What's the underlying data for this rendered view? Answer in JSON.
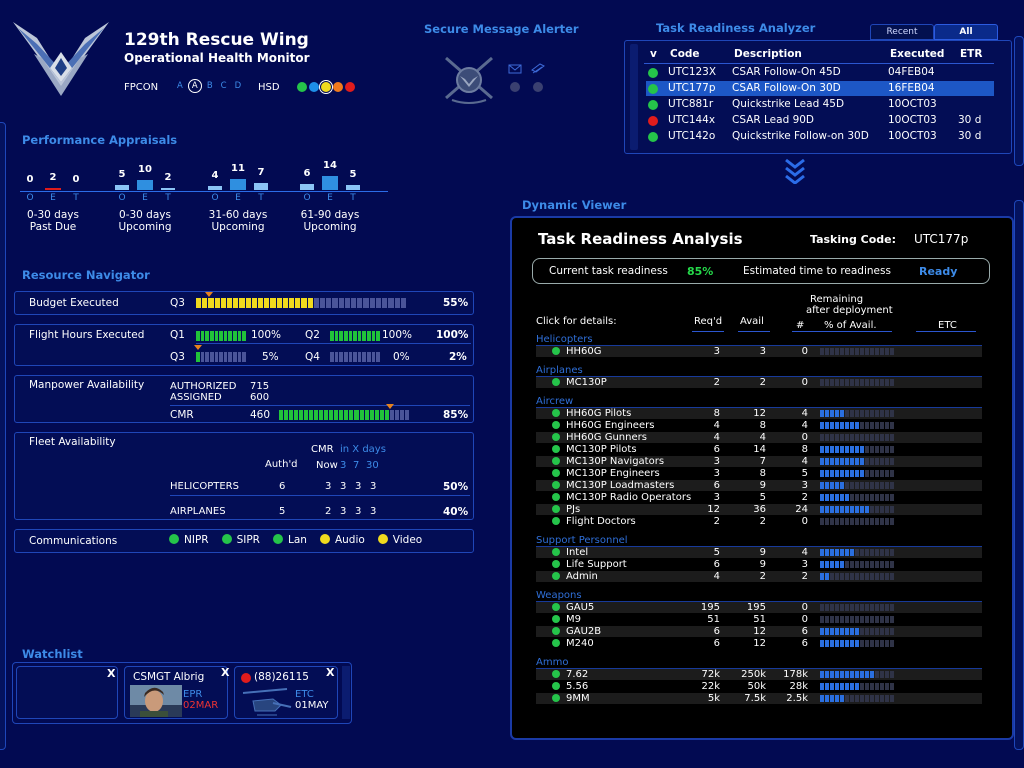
{
  "header": {
    "org_name": "129th Rescue Wing",
    "app_name": "Operational Health Monitor",
    "fpcon_label": "FPCON",
    "fpcon_levels": [
      "A",
      "A",
      "B",
      "C",
      "D"
    ],
    "fpcon_selected": "A",
    "hsd_label": "HSD",
    "hsd_colors": [
      "#25c44a",
      "#1e8fe8",
      "#f0da1e",
      "#f07a1c",
      "#e01c1c"
    ],
    "hsd_selected": 2
  },
  "secure_message": {
    "title": "Secure Message Alerter"
  },
  "task_readiness": {
    "title": "Task Readiness Analyzer",
    "tabs": [
      "Recent",
      "All"
    ],
    "active_tab": "All",
    "columns": [
      "v",
      "Code",
      "Description",
      "Executed",
      "ETR"
    ],
    "rows": [
      {
        "status": "#25c44a",
        "code": "UTC123X",
        "description": "CSAR Follow-On 45D",
        "executed": "04FEB04",
        "etr": ""
      },
      {
        "status": "#25c44a",
        "code": "UTC177p",
        "description": "CSAR Follow-On 30D",
        "executed": "16FEB04",
        "etr": "",
        "selected": true
      },
      {
        "status": "#25c44a",
        "code": "UTC881r",
        "description": "Quickstrike Lead 45D",
        "executed": "10OCT03",
        "etr": ""
      },
      {
        "status": "#e01c1c",
        "code": "UTC144x",
        "description": "CSAR Lead 90D",
        "executed": "10OCT03",
        "etr": "30 d"
      },
      {
        "status": "#25c44a",
        "code": "UTC142o",
        "description": "Quickstrike Follow-on 30D",
        "executed": "10OCT03",
        "etr": "30 d"
      }
    ]
  },
  "performance": {
    "title": "Performance Appraisals",
    "groups": [
      {
        "values": [
          0,
          2,
          0
        ],
        "labels": [
          "O",
          "E",
          "T"
        ],
        "caption1": "0-30 days",
        "caption2": "Past Due"
      },
      {
        "values": [
          5,
          10,
          2
        ],
        "labels": [
          "O",
          "E",
          "T"
        ],
        "caption1": "0-30 days",
        "caption2": "Upcoming"
      },
      {
        "values": [
          4,
          11,
          7
        ],
        "labels": [
          "O",
          "E",
          "T"
        ],
        "caption1": "31-60 days",
        "caption2": "Upcoming"
      },
      {
        "values": [
          6,
          14,
          5
        ],
        "labels": [
          "O",
          "E",
          "T"
        ],
        "caption1": "61-90 days",
        "caption2": "Upcoming"
      }
    ]
  },
  "resource": {
    "title": "Resource Navigator",
    "budget": {
      "label": "Budget Executed",
      "quarter": "Q3",
      "pct": "55%",
      "fill": 0.55
    },
    "flight": {
      "label": "Flight Hours Executed",
      "q1": "Q1",
      "q1_pct": "100%",
      "q2": "Q2",
      "q2_pct": "100%",
      "total1": "100%",
      "q3": "Q3",
      "q3_pct": "5%",
      "q4": "Q4",
      "q4_pct": "0%",
      "total2": "2%"
    },
    "manpower": {
      "label": "Manpower Availability",
      "authorized_label": "AUTHORIZED",
      "authorized": "715",
      "assigned_label": "ASSIGNED",
      "assigned": "600",
      "cmr_label": "CMR",
      "cmr": "460",
      "pct": "85%",
      "fill": 0.85
    },
    "fleet": {
      "label": "Fleet Availability",
      "cmr_label": "CMR",
      "in_x_days": "in X days",
      "authd": "Auth'd",
      "now": "Now",
      "d3": "3",
      "d7": "7",
      "d30": "30",
      "helicopters": {
        "label": "HELICOPTERS",
        "auth": "6",
        "vals": [
          "3",
          "3",
          "3",
          "3"
        ],
        "pct": "50%"
      },
      "airplanes": {
        "label": "AIRPLANES",
        "auth": "5",
        "vals": [
          "2",
          "3",
          "3",
          "3"
        ],
        "pct": "40%"
      }
    },
    "comms": {
      "label": "Communications",
      "items": [
        {
          "name": "NIPR",
          "color": "#25c44a"
        },
        {
          "name": "SIPR",
          "color": "#25c44a"
        },
        {
          "name": "Lan",
          "color": "#25c44a"
        },
        {
          "name": "Audio",
          "color": "#f0da1e"
        },
        {
          "name": "Video",
          "color": "#f0da1e"
        }
      ]
    }
  },
  "watchlist": {
    "title": "Watchlist",
    "close": "X",
    "person": {
      "name": "CSMGT Albrig",
      "field": "EPR",
      "date": "02MAR"
    },
    "aircraft": {
      "name": "(88)26115",
      "field": "ETC",
      "date": "01MAY"
    }
  },
  "dynamic_viewer": {
    "title": "Dynamic Viewer",
    "panel_title": "Task Readiness Analysis",
    "tasking_label": "Tasking Code:",
    "tasking_code": "UTC177p",
    "current_label": "Current task readiness",
    "current_pct": "85%",
    "etr_label": "Estimated time to readiness",
    "etr_value": "Ready",
    "col_click": "Click for details:",
    "col_req": "Req'd",
    "col_avail": "Avail",
    "col_remaining1": "Remaining",
    "col_remaining2": "after deployment",
    "col_hash": "#",
    "col_pct": "% of Avail.",
    "col_etc": "ETC",
    "categories": [
      {
        "name": "Helicopters",
        "rows": [
          {
            "name": "HH60G",
            "req": "3",
            "avail": "3",
            "rem": "0",
            "fill": 0
          }
        ]
      },
      {
        "name": "Airplanes",
        "rows": [
          {
            "name": "MC130P",
            "req": "2",
            "avail": "2",
            "rem": "0",
            "fill": 0
          }
        ]
      },
      {
        "name": "Aircrew",
        "rows": [
          {
            "name": "HH60G Pilots",
            "req": "8",
            "avail": "12",
            "rem": "4",
            "fill": 0.33
          },
          {
            "name": "HH60G Engineers",
            "req": "4",
            "avail": "8",
            "rem": "4",
            "fill": 0.5
          },
          {
            "name": "HH60G Gunners",
            "req": "4",
            "avail": "4",
            "rem": "0",
            "fill": 0
          },
          {
            "name": "MC130P Pilots",
            "req": "6",
            "avail": "14",
            "rem": "8",
            "fill": 0.57
          },
          {
            "name": "MC130P Navigators",
            "req": "3",
            "avail": "7",
            "rem": "4",
            "fill": 0.57
          },
          {
            "name": "MC130P Engineers",
            "req": "3",
            "avail": "8",
            "rem": "5",
            "fill": 0.62
          },
          {
            "name": "MC130P Loadmasters",
            "req": "6",
            "avail": "9",
            "rem": "3",
            "fill": 0.33
          },
          {
            "name": "MC130P Radio Operators",
            "req": "3",
            "avail": "5",
            "rem": "2",
            "fill": 0.4
          },
          {
            "name": "PJs",
            "req": "12",
            "avail": "36",
            "rem": "24",
            "fill": 0.67
          },
          {
            "name": "Flight Doctors",
            "req": "2",
            "avail": "2",
            "rem": "0",
            "fill": 0
          }
        ]
      },
      {
        "name": "Support Personnel",
        "rows": [
          {
            "name": "Intel",
            "req": "5",
            "avail": "9",
            "rem": "4",
            "fill": 0.44
          },
          {
            "name": "Life Support",
            "req": "6",
            "avail": "9",
            "rem": "3",
            "fill": 0.33
          },
          {
            "name": "Admin",
            "req": "4",
            "avail": "2",
            "rem": "2",
            "fill": 0.1
          }
        ]
      },
      {
        "name": "Weapons",
        "rows": [
          {
            "name": "GAU5",
            "req": "195",
            "avail": "195",
            "rem": "0",
            "fill": 0
          },
          {
            "name": "M9",
            "req": "51",
            "avail": "51",
            "rem": "0",
            "fill": 0
          },
          {
            "name": "GAU2B",
            "req": "6",
            "avail": "12",
            "rem": "6",
            "fill": 0.5
          },
          {
            "name": "M240",
            "req": "6",
            "avail": "12",
            "rem": "6",
            "fill": 0.5
          }
        ]
      },
      {
        "name": "Ammo",
        "rows": [
          {
            "name": "7.62",
            "req": "72k",
            "avail": "250k",
            "rem": "178k",
            "fill": 0.71
          },
          {
            "name": "5.56",
            "req": "22k",
            "avail": "50k",
            "rem": "28k",
            "fill": 0.56
          },
          {
            "name": "9MM",
            "req": "5k",
            "avail": "7.5k",
            "rem": "2.5k",
            "fill": 0.33
          }
        ]
      }
    ]
  }
}
